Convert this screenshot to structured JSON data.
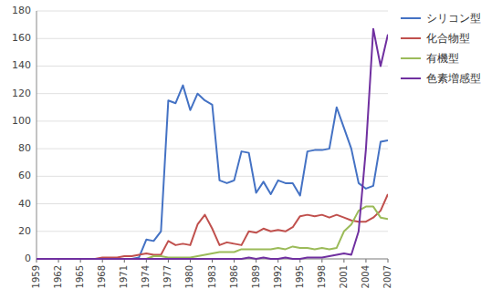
{
  "chart_data": {
    "type": "line",
    "x": [
      1959,
      1960,
      1961,
      1962,
      1963,
      1964,
      1965,
      1966,
      1967,
      1968,
      1969,
      1970,
      1971,
      1972,
      1973,
      1974,
      1975,
      1976,
      1977,
      1978,
      1979,
      1980,
      1981,
      1982,
      1983,
      1984,
      1985,
      1986,
      1987,
      1988,
      1989,
      1990,
      1991,
      1992,
      1993,
      1994,
      1995,
      1996,
      1997,
      1998,
      1999,
      2000,
      2001,
      2002,
      2003,
      2004,
      2005,
      2006,
      2007
    ],
    "series": [
      {
        "name": "シリコン型",
        "color": "#4472C4",
        "values": [
          0,
          0,
          0,
          0,
          0,
          0,
          0,
          0,
          0,
          0,
          0,
          0,
          0,
          0,
          1,
          14,
          13,
          20,
          115,
          113,
          126,
          108,
          120,
          115,
          112,
          57,
          55,
          57,
          78,
          77,
          48,
          56,
          47,
          57,
          55,
          55,
          46,
          78,
          79,
          79,
          80,
          110,
          95,
          80,
          55,
          51,
          53,
          85,
          86
        ]
      },
      {
        "name": "化合物型",
        "color": "#C0504D",
        "values": [
          0,
          0,
          0,
          0,
          0,
          0,
          0,
          0,
          0,
          1,
          1,
          1,
          2,
          2,
          3,
          4,
          3,
          3,
          13,
          10,
          11,
          10,
          25,
          32,
          22,
          10,
          12,
          11,
          10,
          20,
          19,
          22,
          20,
          21,
          20,
          23,
          31,
          32,
          31,
          32,
          30,
          32,
          30,
          28,
          27,
          27,
          30,
          35,
          47
        ]
      },
      {
        "name": "有機型",
        "color": "#9BBB59",
        "values": [
          0,
          0,
          0,
          0,
          0,
          0,
          0,
          0,
          0,
          0,
          0,
          0,
          0,
          0,
          0,
          0,
          2,
          2,
          1,
          1,
          1,
          1,
          2,
          3,
          4,
          5,
          5,
          5,
          7,
          7,
          7,
          7,
          7,
          8,
          7,
          9,
          8,
          8,
          7,
          8,
          7,
          8,
          20,
          25,
          35,
          38,
          38,
          30,
          29
        ]
      },
      {
        "name": "色素増感型",
        "color": "#7030A0",
        "values": [
          0,
          0,
          0,
          0,
          0,
          0,
          0,
          0,
          0,
          0,
          0,
          0,
          0,
          0,
          0,
          0,
          0,
          0,
          0,
          0,
          0,
          0,
          0,
          0,
          0,
          0,
          0,
          0,
          0,
          1,
          0,
          1,
          0,
          0,
          1,
          0,
          0,
          1,
          1,
          1,
          2,
          3,
          4,
          3,
          20,
          80,
          167,
          140,
          163
        ]
      }
    ],
    "xlim": [
      1959,
      2007
    ],
    "xticks": [
      1959,
      1962,
      1965,
      1968,
      1971,
      1974,
      1977,
      1980,
      1983,
      1986,
      1989,
      1992,
      1995,
      1998,
      2001,
      2004,
      2007
    ],
    "ylim": [
      0,
      180
    ],
    "yticks": [
      0,
      20,
      40,
      60,
      80,
      100,
      120,
      140,
      160,
      180
    ],
    "grid": "y",
    "legend": "right"
  }
}
